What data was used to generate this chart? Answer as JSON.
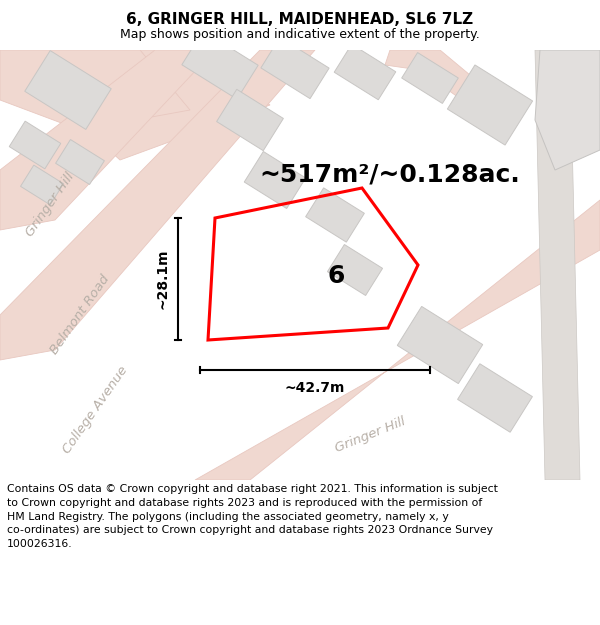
{
  "title": "6, GRINGER HILL, MAIDENHEAD, SL6 7LZ",
  "subtitle": "Map shows position and indicative extent of the property.",
  "footer_lines": [
    "Contains OS data © Crown copyright and database right 2021. This information is subject to Crown copyright and database rights 2023 and is reproduced with the permission of",
    "HM Land Registry. The polygons (including the associated geometry, namely x, y co-ordinates) are subject to Crown copyright and database rights 2023 Ordnance Survey",
    "100026316."
  ],
  "area_label": "~517m²/~0.128ac.",
  "width_label": "~42.7m",
  "height_label": "~28.1m",
  "house_number": "6",
  "map_bg": "#f7f5f3",
  "road_color": "#f0d8d0",
  "road_edge": "#e8c8c0",
  "building_color": "#dddbd9",
  "building_outline": "#c8c6c4",
  "highlight_color": "#ff0000",
  "street_text_color": "#b8b0a8",
  "title_fontsize": 11,
  "subtitle_fontsize": 9,
  "footer_fontsize": 7.8,
  "area_fontsize": 18,
  "dim_fontsize": 10,
  "house_num_fontsize": 18,
  "street_label_fontsize": 9.5
}
